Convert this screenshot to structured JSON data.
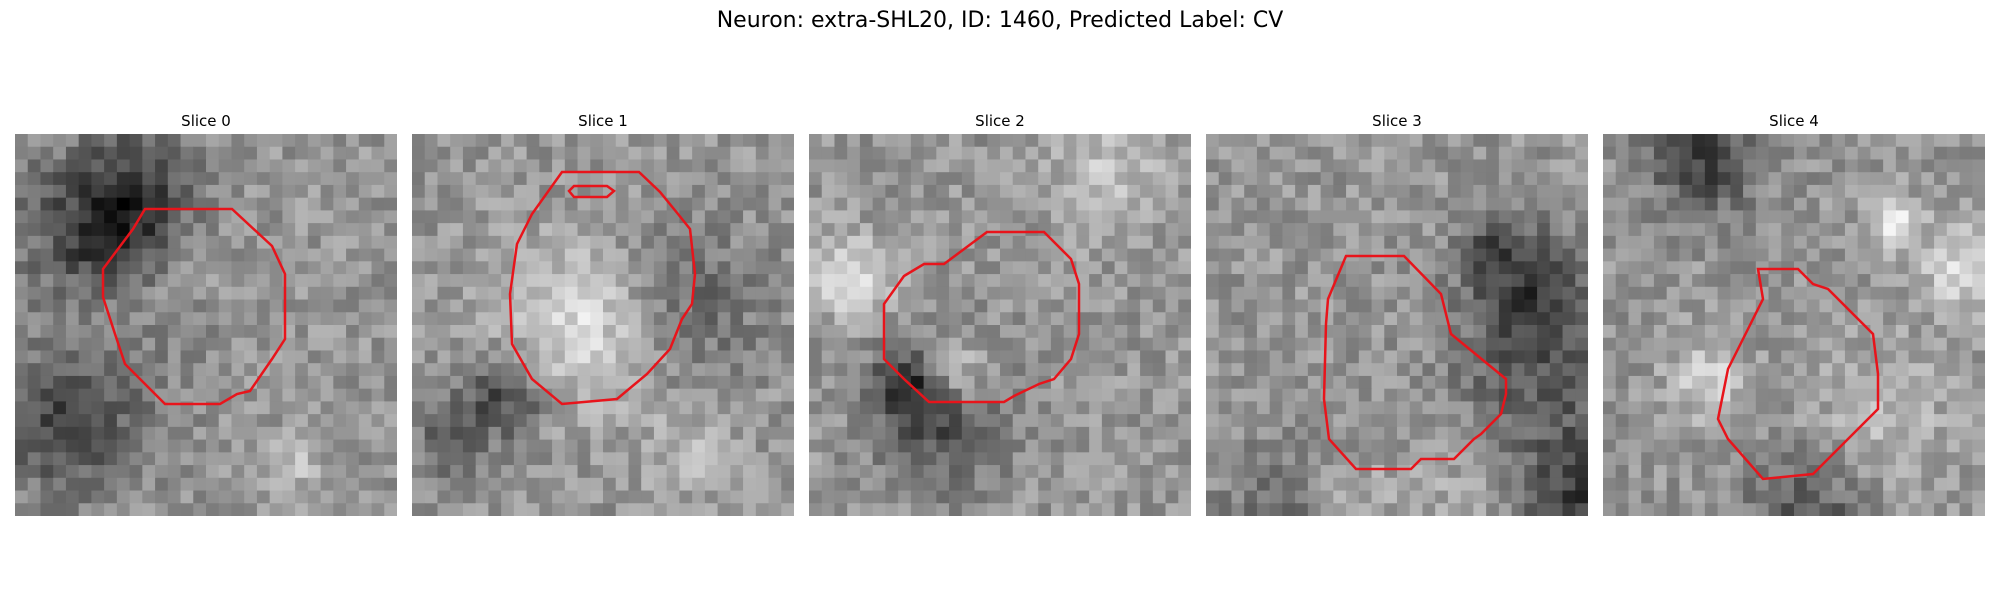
{
  "figure": {
    "title": "Neuron: extra-SHL20, ID: 1460, Predicted Label: CV"
  },
  "panels": [
    {
      "title": "Slice 0",
      "seed": 11,
      "contour_color": "#e8141b"
    },
    {
      "title": "Slice 1",
      "seed": 23,
      "contour_color": "#e8141b"
    },
    {
      "title": "Slice 2",
      "seed": 37,
      "contour_color": "#e8141b"
    },
    {
      "title": "Slice 3",
      "seed": 41,
      "contour_color": "#e8141b"
    },
    {
      "title": "Slice 4",
      "seed": 59,
      "contour_color": "#e8141b"
    }
  ]
}
